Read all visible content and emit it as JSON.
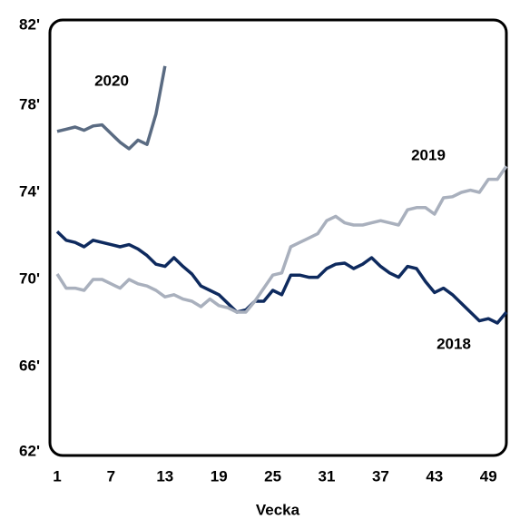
{
  "chart_data": {
    "type": "line",
    "x_label": "Vecka",
    "x": [
      1,
      2,
      3,
      4,
      5,
      6,
      7,
      8,
      9,
      10,
      11,
      12,
      13,
      14,
      15,
      16,
      17,
      18,
      19,
      20,
      21,
      22,
      23,
      24,
      25,
      26,
      27,
      28,
      29,
      30,
      31,
      32,
      33,
      34,
      35,
      36,
      37,
      38,
      39,
      40,
      41,
      42,
      43,
      44,
      45,
      46,
      47,
      48,
      49,
      50,
      51
    ],
    "xlim": [
      1,
      51
    ],
    "xticks": [
      1,
      7,
      13,
      19,
      25,
      31,
      37,
      43,
      49
    ],
    "ylim": [
      62,
      82
    ],
    "yticks": [
      {
        "value": 62,
        "label": "62'"
      },
      {
        "value": 66,
        "label": "66'"
      },
      {
        "value": 70,
        "label": "70'"
      },
      {
        "value": 74,
        "label": "74'"
      },
      {
        "value": 78,
        "label": "78'"
      },
      {
        "value": 82,
        "label": "82'"
      }
    ],
    "grid": false,
    "series": [
      {
        "name": "2018",
        "color": "#0e2a5e",
        "values": [
          72.2,
          71.8,
          71.7,
          71.5,
          71.8,
          71.7,
          71.6,
          71.5,
          71.6,
          71.4,
          71.1,
          70.7,
          70.6,
          71.0,
          70.6,
          70.25,
          69.7,
          69.5,
          69.3,
          68.9,
          68.5,
          68.6,
          69.0,
          69.0,
          69.5,
          69.3,
          70.2,
          70.2,
          70.1,
          70.1,
          70.5,
          70.7,
          70.75,
          70.5,
          70.7,
          71.0,
          70.6,
          70.3,
          70.1,
          70.6,
          70.5,
          69.9,
          69.4,
          69.6,
          69.3,
          68.9,
          68.5,
          68.1,
          68.2,
          68.0,
          68.5
        ]
      },
      {
        "name": "2019",
        "color": "#a9b0bd",
        "values": [
          70.25,
          69.6,
          69.6,
          69.5,
          70.0,
          70.0,
          69.8,
          69.6,
          70.0,
          69.8,
          69.7,
          69.5,
          69.2,
          69.3,
          69.1,
          69.0,
          68.75,
          69.1,
          68.8,
          68.7,
          68.5,
          68.5,
          69.0,
          69.6,
          70.2,
          70.3,
          71.5,
          71.7,
          71.9,
          72.1,
          72.7,
          72.9,
          72.6,
          72.5,
          72.5,
          72.6,
          72.7,
          72.6,
          72.5,
          73.2,
          73.3,
          73.3,
          73.0,
          73.75,
          73.8,
          74.0,
          74.1,
          74.0,
          74.6,
          74.6,
          75.2
        ]
      },
      {
        "name": "2020",
        "color": "#5a6b82",
        "values": [
          76.8,
          76.9,
          77.0,
          76.85,
          77.05,
          77.1,
          76.7,
          76.3,
          76.0,
          76.4,
          76.2,
          77.6,
          79.8,
          null,
          null,
          null,
          null,
          null,
          null,
          null,
          null,
          null,
          null,
          null,
          null,
          null,
          null,
          null,
          null,
          null,
          null,
          null,
          null,
          null,
          null,
          null,
          null,
          null,
          null,
          null,
          null,
          null,
          null,
          null,
          null,
          null,
          null,
          null,
          null,
          null,
          null
        ]
      }
    ]
  }
}
